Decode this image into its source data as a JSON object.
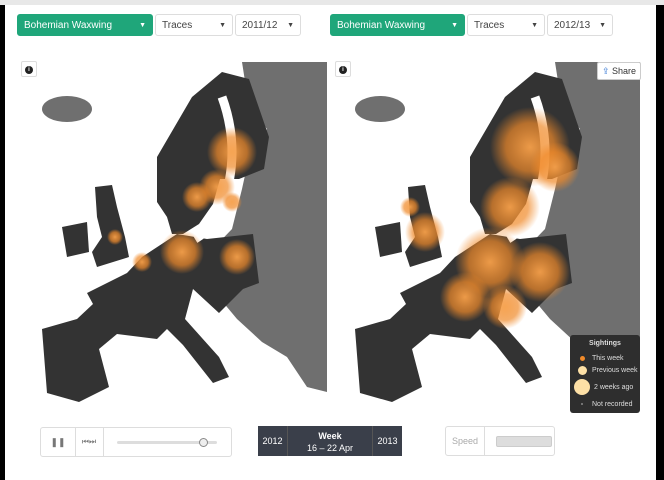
{
  "left": {
    "species": "Bohemian Waxwing",
    "mode": "Traces",
    "season": "2011/12"
  },
  "right": {
    "species": "Bohemian Waxwing",
    "mode": "Traces",
    "season": "2012/13"
  },
  "info_icon": "i",
  "share_label": "Share",
  "legend": {
    "title": "Sightings",
    "items": [
      "This week",
      "Previous week",
      "2 weeks ago",
      "Not recorded"
    ]
  },
  "playback": {
    "progress": 0.86
  },
  "week": {
    "prev": "2012",
    "label": "Week",
    "range": "16 – 22 Apr",
    "next": "2013"
  },
  "speed": {
    "label": "Speed",
    "value": 1.0
  },
  "colors": {
    "accent": "#1fa67a",
    "sighting": "#f08a2a",
    "land_recorded": "#333333",
    "land_other": "#6f6f6f"
  }
}
